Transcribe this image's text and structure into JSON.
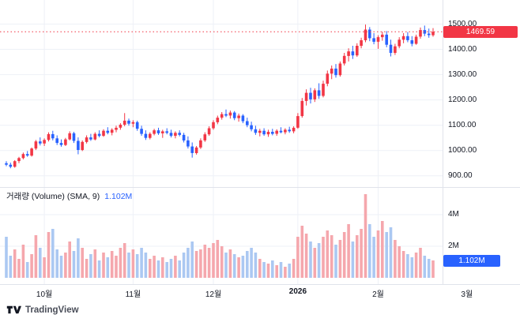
{
  "colors": {
    "up": "#f23645",
    "down": "#2962ff",
    "volume_up": "#f5a7ad",
    "volume_down": "#abc8f2",
    "grid": "#eef1f7",
    "border": "#e0e3eb",
    "axis_text": "#131722",
    "price_line": "#f23645",
    "price_badge_bg": "#f23645",
    "volume_badge_bg": "#2962ff",
    "badge_text": "#ffffff",
    "legend_value_color": "#2962ff",
    "brand_text_color": "#4a4e59"
  },
  "footer": {
    "brand": "TradingView"
  },
  "chart_data": {
    "type": "candlestick",
    "title": "",
    "current_price": 1469.59,
    "current_price_label": "1469.59",
    "volume_legend": {
      "title": "거래량 (Volume) (SMA, 9)",
      "value": "1.102M"
    },
    "volume_badge_label": "1.102M",
    "volume_badge_value": 1.102,
    "price_axis": {
      "ticks": [
        "1500.00",
        "1400.00",
        "1300.00",
        "1200.00",
        "1100.00",
        "1000.00",
        "900.00"
      ],
      "tick_values": [
        1500,
        1400,
        1300,
        1200,
        1100,
        1000,
        900
      ],
      "visible_range": [
        865,
        1595
      ]
    },
    "volume_axis": {
      "ticks": [
        "4M",
        "2M"
      ],
      "tick_values": [
        4,
        2
      ],
      "unit": "millions"
    },
    "x_labels": [
      {
        "label": "10월",
        "index": 9
      },
      {
        "label": "11월",
        "index": 30
      },
      {
        "label": "12월",
        "index": 49
      },
      {
        "label": "2026",
        "index": 69,
        "bold": true
      },
      {
        "label": "2월",
        "index": 88
      },
      {
        "label": "3월",
        "index": 109
      }
    ],
    "candles": [
      [
        950,
        958,
        938,
        944
      ],
      [
        944,
        952,
        930,
        936
      ],
      [
        936,
        962,
        932,
        958
      ],
      [
        958,
        975,
        950,
        970
      ],
      [
        970,
        992,
        965,
        986
      ],
      [
        986,
        998,
        975,
        980
      ],
      [
        980,
        1012,
        976,
        1008
      ],
      [
        1008,
        1042,
        1002,
        1036
      ],
      [
        1036,
        1052,
        1020,
        1028
      ],
      [
        1028,
        1048,
        1018,
        1042
      ],
      [
        1042,
        1072,
        1036,
        1065
      ],
      [
        1065,
        1078,
        1040,
        1048
      ],
      [
        1048,
        1060,
        1022,
        1030
      ],
      [
        1030,
        1044,
        1015,
        1022
      ],
      [
        1022,
        1050,
        1018,
        1044
      ],
      [
        1044,
        1076,
        1040,
        1068
      ],
      [
        1068,
        1074,
        1030,
        1038
      ],
      [
        1038,
        1052,
        985,
        1002
      ],
      [
        1002,
        1040,
        998,
        1034
      ],
      [
        1034,
        1060,
        1028,
        1052
      ],
      [
        1052,
        1066,
        1038,
        1044
      ],
      [
        1044,
        1072,
        1040,
        1066
      ],
      [
        1066,
        1080,
        1052,
        1058
      ],
      [
        1058,
        1084,
        1054,
        1078
      ],
      [
        1078,
        1092,
        1064,
        1070
      ],
      [
        1070,
        1088,
        1060,
        1082
      ],
      [
        1082,
        1098,
        1072,
        1090
      ],
      [
        1090,
        1108,
        1082,
        1102
      ],
      [
        1102,
        1148,
        1096,
        1118
      ],
      [
        1118,
        1126,
        1098,
        1106
      ],
      [
        1106,
        1120,
        1092,
        1112
      ],
      [
        1112,
        1118,
        1078,
        1086
      ],
      [
        1086,
        1098,
        1058,
        1066
      ],
      [
        1066,
        1080,
        1042,
        1050
      ],
      [
        1050,
        1072,
        1044,
        1066
      ],
      [
        1066,
        1086,
        1060,
        1080
      ],
      [
        1080,
        1090,
        1062,
        1068
      ],
      [
        1068,
        1082,
        1050,
        1076
      ],
      [
        1076,
        1088,
        1064,
        1070
      ],
      [
        1070,
        1082,
        1052,
        1058
      ],
      [
        1058,
        1076,
        1048,
        1070
      ],
      [
        1070,
        1080,
        1056,
        1062
      ],
      [
        1062,
        1070,
        1032,
        1040
      ],
      [
        1040,
        1056,
        1008,
        1016
      ],
      [
        1016,
        1032,
        972,
        990
      ],
      [
        990,
        1018,
        984,
        1012
      ],
      [
        1012,
        1048,
        1006,
        1040
      ],
      [
        1040,
        1072,
        1034,
        1064
      ],
      [
        1064,
        1096,
        1058,
        1088
      ],
      [
        1088,
        1120,
        1082,
        1112
      ],
      [
        1112,
        1138,
        1104,
        1130
      ],
      [
        1130,
        1152,
        1122,
        1144
      ],
      [
        1144,
        1162,
        1132,
        1138
      ],
      [
        1138,
        1158,
        1126,
        1150
      ],
      [
        1150,
        1156,
        1120,
        1128
      ],
      [
        1128,
        1146,
        1114,
        1138
      ],
      [
        1138,
        1144,
        1108,
        1116
      ],
      [
        1116,
        1130,
        1092,
        1100
      ],
      [
        1100,
        1114,
        1076,
        1084
      ],
      [
        1084,
        1098,
        1062,
        1070
      ],
      [
        1070,
        1086,
        1056,
        1078
      ],
      [
        1078,
        1088,
        1058,
        1064
      ],
      [
        1064,
        1082,
        1054,
        1074
      ],
      [
        1074,
        1086,
        1060,
        1066
      ],
      [
        1066,
        1084,
        1058,
        1078
      ],
      [
        1078,
        1092,
        1068,
        1072
      ],
      [
        1072,
        1088,
        1064,
        1082
      ],
      [
        1082,
        1094,
        1070,
        1076
      ],
      [
        1076,
        1096,
        1068,
        1090
      ],
      [
        1090,
        1148,
        1086,
        1136
      ],
      [
        1136,
        1208,
        1130,
        1196
      ],
      [
        1196,
        1242,
        1178,
        1228
      ],
      [
        1228,
        1248,
        1186,
        1202
      ],
      [
        1202,
        1246,
        1192,
        1238
      ],
      [
        1238,
        1266,
        1204,
        1216
      ],
      [
        1216,
        1276,
        1210,
        1264
      ],
      [
        1264,
        1316,
        1254,
        1304
      ],
      [
        1304,
        1336,
        1282,
        1324
      ],
      [
        1324,
        1342,
        1288,
        1298
      ],
      [
        1298,
        1352,
        1292,
        1344
      ],
      [
        1344,
        1386,
        1336,
        1374
      ],
      [
        1374,
        1404,
        1352,
        1392
      ],
      [
        1392,
        1414,
        1362,
        1376
      ],
      [
        1376,
        1424,
        1370,
        1414
      ],
      [
        1414,
        1446,
        1404,
        1436
      ],
      [
        1436,
        1498,
        1428,
        1478
      ],
      [
        1478,
        1488,
        1432,
        1444
      ],
      [
        1444,
        1464,
        1420,
        1430
      ],
      [
        1430,
        1456,
        1402,
        1448
      ],
      [
        1448,
        1470,
        1434,
        1458
      ],
      [
        1458,
        1472,
        1408,
        1418
      ],
      [
        1418,
        1438,
        1372,
        1386
      ],
      [
        1386,
        1422,
        1378,
        1412
      ],
      [
        1412,
        1448,
        1404,
        1438
      ],
      [
        1438,
        1464,
        1424,
        1452
      ],
      [
        1452,
        1468,
        1428,
        1436
      ],
      [
        1436,
        1452,
        1412,
        1422
      ],
      [
        1422,
        1458,
        1418,
        1450
      ],
      [
        1450,
        1486,
        1442,
        1476
      ],
      [
        1476,
        1494,
        1452,
        1462
      ],
      [
        1462,
        1482,
        1446,
        1456
      ],
      [
        1456,
        1484,
        1450,
        1469.59
      ]
    ],
    "volumes": [
      2.6,
      1.4,
      1.8,
      1.2,
      2.1,
      1.0,
      1.5,
      2.7,
      1.9,
      1.3,
      2.9,
      3.1,
      1.8,
      1.4,
      1.6,
      2.3,
      1.7,
      2.5,
      1.9,
      1.2,
      1.5,
      1.8,
      1.1,
      1.6,
      1.3,
      1.7,
      1.4,
      1.9,
      2.2,
      1.6,
      1.8,
      1.5,
      1.9,
      1.6,
      1.2,
      1.4,
      1.1,
      1.3,
      1.0,
      1.2,
      1.4,
      1.1,
      1.6,
      1.9,
      2.3,
      1.7,
      1.8,
      2.1,
      1.9,
      2.2,
      2.4,
      2.0,
      1.6,
      1.8,
      1.5,
      1.3,
      1.4,
      1.7,
      1.9,
      1.6,
      1.2,
      1.0,
      0.9,
      1.1,
      0.8,
      1.0,
      0.7,
      0.9,
      1.2,
      2.6,
      3.3,
      2.8,
      2.3,
      1.9,
      2.2,
      2.6,
      3.0,
      2.7,
      2.1,
      2.4,
      2.9,
      3.4,
      2.3,
      2.7,
      3.1,
      5.3,
      3.4,
      2.6,
      3.0,
      3.6,
      2.9,
      3.2,
      2.4,
      2.0,
      1.7,
      1.5,
      1.3,
      1.6,
      1.9,
      1.4,
      1.2,
      1.1
    ]
  }
}
